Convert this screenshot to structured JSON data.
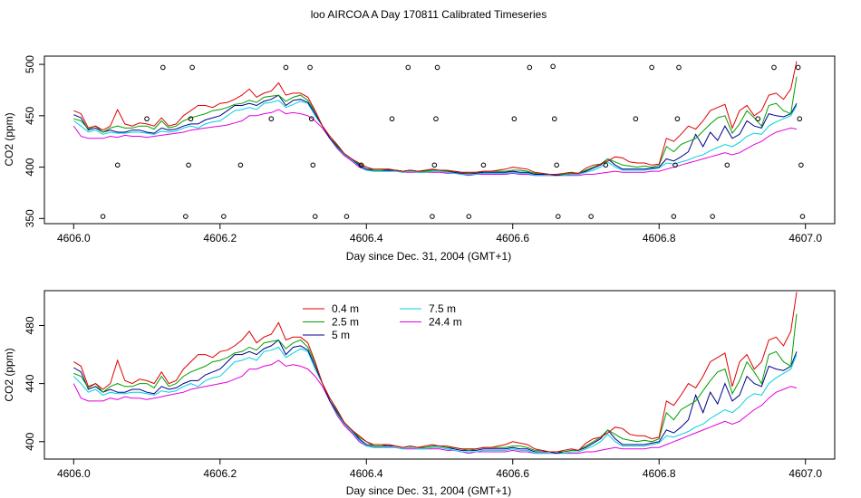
{
  "title": "loo AIRCOA A  Day 170811  Calibrated Timeseries",
  "colors": {
    "0.4 m": "#e00000",
    "2.5 m": "#00a000",
    "5 m": "#00008b",
    "7.5 m": "#00d0e0",
    "24.4 m": "#e000e0",
    "points": "#000000",
    "frame": "#000000"
  },
  "chart_data": [
    {
      "type": "scatter+line",
      "xlabel": "Day since Dec. 31, 2004 (GMT+1)",
      "ylabel": "CO2 (ppm)",
      "xlim": [
        4605.96,
        4607.04
      ],
      "ylim": [
        345,
        508
      ],
      "xticks": [
        4606.0,
        4606.2,
        4606.4,
        4606.6,
        4606.8,
        4607.0
      ],
      "xtick_labels": [
        "4606.0",
        "4606.2",
        "4606.4",
        "4606.6",
        "4606.8",
        "4607.0"
      ],
      "yticks": [
        350,
        400,
        450,
        500
      ],
      "ytick_labels": [
        "350",
        "400",
        "450",
        "500"
      ],
      "calibration_points": [
        {
          "x": 4606.04,
          "y": 352
        },
        {
          "x": 4606.06,
          "y": 402
        },
        {
          "x": 4606.1,
          "y": 447
        },
        {
          "x": 4606.122,
          "y": 497
        },
        {
          "x": 4606.153,
          "y": 352
        },
        {
          "x": 4606.157,
          "y": 402
        },
        {
          "x": 4606.16,
          "y": 447
        },
        {
          "x": 4606.162,
          "y": 497
        },
        {
          "x": 4606.205,
          "y": 352
        },
        {
          "x": 4606.228,
          "y": 402
        },
        {
          "x": 4606.27,
          "y": 447
        },
        {
          "x": 4606.29,
          "y": 497
        },
        {
          "x": 4606.323,
          "y": 497
        },
        {
          "x": 4606.325,
          "y": 447
        },
        {
          "x": 4606.327,
          "y": 402
        },
        {
          "x": 4606.33,
          "y": 352
        },
        {
          "x": 4606.373,
          "y": 352
        },
        {
          "x": 4606.393,
          "y": 402
        },
        {
          "x": 4606.435,
          "y": 447
        },
        {
          "x": 4606.457,
          "y": 497
        },
        {
          "x": 4606.49,
          "y": 352
        },
        {
          "x": 4606.493,
          "y": 402
        },
        {
          "x": 4606.495,
          "y": 447
        },
        {
          "x": 4606.497,
          "y": 497
        },
        {
          "x": 4606.54,
          "y": 352
        },
        {
          "x": 4606.56,
          "y": 402
        },
        {
          "x": 4606.602,
          "y": 447
        },
        {
          "x": 4606.623,
          "y": 497
        },
        {
          "x": 4606.655,
          "y": 498
        },
        {
          "x": 4606.657,
          "y": 447
        },
        {
          "x": 4606.66,
          "y": 402
        },
        {
          "x": 4606.662,
          "y": 352
        },
        {
          "x": 4606.707,
          "y": 352
        },
        {
          "x": 4606.727,
          "y": 402
        },
        {
          "x": 4606.768,
          "y": 447
        },
        {
          "x": 4606.79,
          "y": 497
        },
        {
          "x": 4606.82,
          "y": 352
        },
        {
          "x": 4606.822,
          "y": 402
        },
        {
          "x": 4606.825,
          "y": 447
        },
        {
          "x": 4606.827,
          "y": 497
        },
        {
          "x": 4606.873,
          "y": 352
        },
        {
          "x": 4606.893,
          "y": 402
        },
        {
          "x": 4606.935,
          "y": 447
        },
        {
          "x": 4606.957,
          "y": 497
        },
        {
          "x": 4606.99,
          "y": 497
        },
        {
          "x": 4606.992,
          "y": 447
        },
        {
          "x": 4606.994,
          "y": 402
        },
        {
          "x": 4606.996,
          "y": 352
        }
      ]
    },
    {
      "type": "line",
      "xlabel": "Day since Dec. 31, 2004 (GMT+1)",
      "ylabel": "CO2 (ppm)",
      "xlim": [
        4605.96,
        4607.04
      ],
      "ylim": [
        388,
        504
      ],
      "xticks": [
        4606.0,
        4606.2,
        4606.4,
        4606.6,
        4606.8,
        4607.0
      ],
      "xtick_labels": [
        "4606.0",
        "4606.2",
        "4606.4",
        "4606.6",
        "4606.8",
        "4607.0"
      ],
      "yticks": [
        400,
        440,
        480
      ],
      "ytick_labels": [
        "400",
        "440",
        "480"
      ],
      "legend": {
        "placement": "top-left",
        "entries": [
          {
            "name": "0.4 m",
            "color": "#e00000"
          },
          {
            "name": "7.5 m",
            "color": "#00d0e0"
          },
          {
            "name": "2.5 m",
            "color": "#00a000"
          },
          {
            "name": "24.4 m",
            "color": "#e000e0"
          },
          {
            "name": "5 m",
            "color": "#00008b"
          }
        ]
      }
    }
  ],
  "series_shared": {
    "x": [
      4606.0,
      4606.01,
      4606.02,
      4606.03,
      4606.04,
      4606.05,
      4606.06,
      4606.07,
      4606.08,
      4606.09,
      4606.1,
      4606.11,
      4606.12,
      4606.13,
      4606.14,
      4606.15,
      4606.16,
      4606.17,
      4606.18,
      4606.19,
      4606.2,
      4606.21,
      4606.22,
      4606.23,
      4606.24,
      4606.25,
      4606.26,
      4606.27,
      4606.28,
      4606.29,
      4606.3,
      4606.31,
      4606.32,
      4606.33,
      4606.34,
      4606.35,
      4606.36,
      4606.37,
      4606.38,
      4606.39,
      4606.4,
      4606.41,
      4606.42,
      4606.43,
      4606.44,
      4606.45,
      4606.46,
      4606.47,
      4606.48,
      4606.49,
      4606.5,
      4606.51,
      4606.52,
      4606.53,
      4606.54,
      4606.55,
      4606.56,
      4606.57,
      4606.58,
      4606.59,
      4606.6,
      4606.61,
      4606.62,
      4606.63,
      4606.64,
      4606.65,
      4606.66,
      4606.67,
      4606.68,
      4606.69,
      4606.7,
      4606.71,
      4606.72,
      4606.73,
      4606.74,
      4606.75,
      4606.76,
      4606.77,
      4606.78,
      4606.79,
      4606.8,
      4606.81,
      4606.82,
      4606.83,
      4606.84,
      4606.85,
      4606.86,
      4606.87,
      4606.88,
      4606.89,
      4606.9,
      4606.91,
      4606.92,
      4606.93,
      4606.94,
      4606.95,
      4606.96,
      4606.97,
      4606.98,
      4606.988
    ],
    "series": [
      {
        "name": "0.4 m",
        "values": [
          455,
          452,
          438,
          440,
          436,
          440,
          456,
          442,
          440,
          443,
          442,
          440,
          448,
          440,
          442,
          450,
          455,
          460,
          460,
          458,
          462,
          463,
          466,
          470,
          476,
          468,
          472,
          474,
          482,
          470,
          472,
          472,
          468,
          455,
          440,
          430,
          422,
          413,
          408,
          404,
          400,
          398,
          398,
          398,
          397,
          396,
          397,
          396,
          397,
          398,
          397,
          397,
          396,
          395,
          395,
          395,
          396,
          396,
          397,
          398,
          400,
          399,
          398,
          395,
          394,
          393,
          393,
          394,
          395,
          394,
          399,
          402,
          403,
          406,
          410,
          409,
          405,
          404,
          404,
          402,
          403,
          428,
          425,
          432,
          440,
          437,
          445,
          455,
          458,
          461,
          438,
          455,
          460,
          450,
          455,
          470,
          472,
          466,
          476,
          503
        ]
      },
      {
        "name": "2.5 m",
        "values": [
          447,
          445,
          437,
          440,
          434,
          438,
          440,
          438,
          438,
          440,
          440,
          437,
          445,
          438,
          440,
          445,
          448,
          450,
          452,
          455,
          456,
          458,
          461,
          462,
          465,
          463,
          468,
          469,
          470,
          464,
          468,
          470,
          465,
          454,
          440,
          430,
          421,
          413,
          408,
          403,
          400,
          397,
          397,
          398,
          397,
          396,
          397,
          396,
          396,
          397,
          397,
          396,
          396,
          395,
          394,
          395,
          396,
          396,
          396,
          396,
          397,
          397,
          396,
          394,
          394,
          393,
          393,
          393,
          394,
          394,
          397,
          400,
          403,
          408,
          405,
          402,
          401,
          400,
          401,
          400,
          402,
          420,
          415,
          422,
          425,
          428,
          435,
          442,
          448,
          450,
          433,
          442,
          455,
          448,
          440,
          460,
          462,
          455,
          452,
          488
        ]
      },
      {
        "name": "5 m",
        "values": [
          451,
          448,
          436,
          438,
          434,
          436,
          434,
          434,
          436,
          436,
          434,
          433,
          438,
          436,
          437,
          440,
          442,
          442,
          446,
          448,
          450,
          455,
          460,
          460,
          462,
          460,
          464,
          466,
          470,
          460,
          465,
          466,
          463,
          452,
          440,
          428,
          420,
          413,
          408,
          402,
          398,
          397,
          397,
          397,
          397,
          396,
          397,
          396,
          396,
          397,
          397,
          396,
          395,
          394,
          394,
          394,
          395,
          395,
          395,
          395,
          396,
          395,
          395,
          393,
          393,
          393,
          392,
          393,
          394,
          394,
          396,
          399,
          402,
          408,
          402,
          398,
          398,
          398,
          398,
          399,
          400,
          408,
          406,
          410,
          415,
          432,
          420,
          434,
          426,
          440,
          428,
          432,
          445,
          440,
          438,
          452,
          450,
          449,
          452,
          462
        ]
      },
      {
        "name": "7.5 m",
        "values": [
          445,
          440,
          434,
          436,
          432,
          434,
          433,
          433,
          434,
          434,
          433,
          432,
          435,
          434,
          435,
          438,
          440,
          438,
          442,
          444,
          445,
          450,
          455,
          456,
          458,
          456,
          462,
          463,
          465,
          458,
          461,
          464,
          462,
          450,
          440,
          428,
          419,
          412,
          407,
          401,
          397,
          396,
          396,
          396,
          396,
          395,
          396,
          395,
          395,
          396,
          396,
          395,
          394,
          393,
          393,
          393,
          394,
          394,
          394,
          394,
          395,
          394,
          394,
          392,
          392,
          392,
          392,
          392,
          393,
          393,
          395,
          397,
          400,
          405,
          400,
          397,
          397,
          397,
          397,
          398,
          399,
          404,
          403,
          405,
          407,
          410,
          412,
          416,
          419,
          422,
          420,
          424,
          430,
          433,
          432,
          440,
          444,
          447,
          450,
          460
        ]
      },
      {
        "name": "24.4 m",
        "values": [
          440,
          430,
          428,
          428,
          428,
          430,
          429,
          431,
          430,
          430,
          429,
          430,
          431,
          432,
          433,
          434,
          436,
          437,
          438,
          439,
          440,
          441,
          443,
          445,
          450,
          450,
          452,
          453,
          456,
          452,
          453,
          452,
          450,
          445,
          438,
          428,
          418,
          411,
          406,
          400,
          397,
          396,
          396,
          396,
          396,
          395,
          395,
          395,
          395,
          395,
          395,
          394,
          394,
          393,
          392,
          393,
          393,
          393,
          393,
          393,
          394,
          393,
          393,
          392,
          392,
          392,
          392,
          392,
          392,
          392,
          393,
          393,
          394,
          395,
          396,
          395,
          395,
          395,
          395,
          396,
          396,
          398,
          400,
          402,
          404,
          406,
          408,
          410,
          412,
          414,
          412,
          414,
          418,
          422,
          425,
          430,
          434,
          436,
          438,
          437
        ]
      }
    ]
  }
}
